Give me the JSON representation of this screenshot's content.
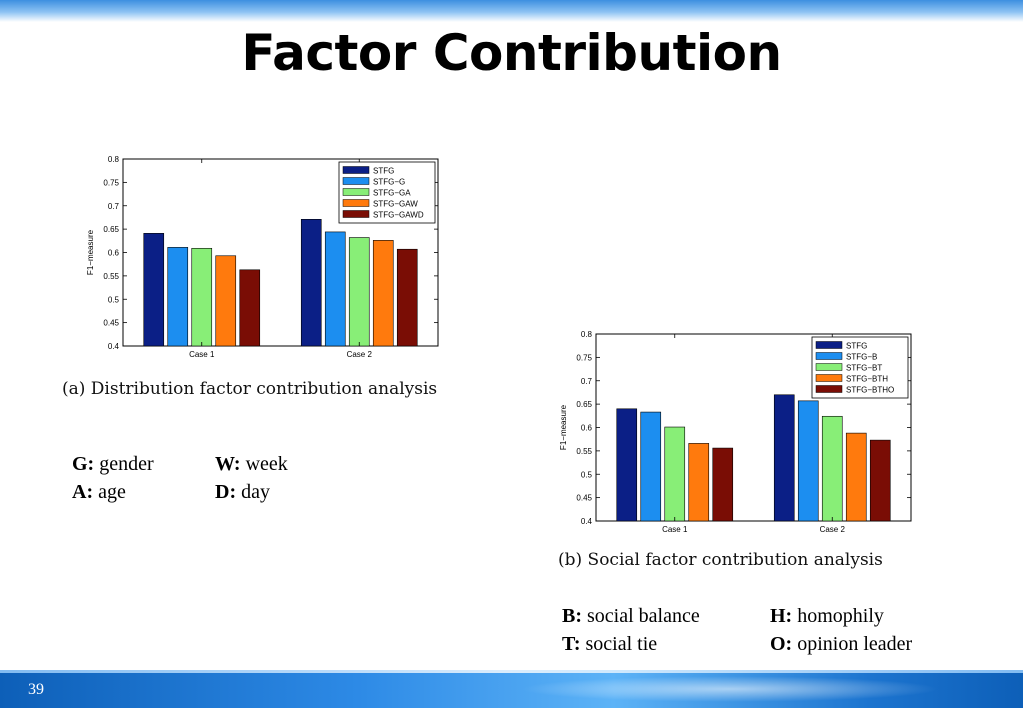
{
  "slide": {
    "title": "Factor Contribution",
    "page_number": "39"
  },
  "captions": {
    "a": "(a) Distribution factor contribution analysis",
    "b": "(b) Social factor contribution analysis"
  },
  "abbreviations": {
    "a_col1": [
      {
        "key": "G:",
        "text": " gender"
      },
      {
        "key": "A:",
        "text": " age"
      }
    ],
    "a_col2": [
      {
        "key": "W:",
        "text": " week"
      },
      {
        "key": "D:",
        "text": " day"
      }
    ],
    "b_col1": [
      {
        "key": "B:",
        "text": " social balance"
      },
      {
        "key": "T:",
        "text": " social tie"
      }
    ],
    "b_col2": [
      {
        "key": "H:",
        "text": " homophily"
      },
      {
        "key": "O:",
        "text": " opinion leader"
      }
    ]
  },
  "colors": [
    "#0b1f86",
    "#1c8ef0",
    "#88ee77",
    "#ff7a0d",
    "#7a0d05"
  ],
  "chart_data": [
    {
      "type": "bar",
      "categories": [
        "Case 1",
        "Case 2"
      ],
      "ylabel": "F1−measure",
      "ylim": [
        0.4,
        0.8
      ],
      "yticks": [
        "0.4",
        "0.45",
        "0.5",
        "0.55",
        "0.6",
        "0.65",
        "0.7",
        "0.75",
        "0.8"
      ],
      "legend_position": "top-right",
      "grid": false,
      "series": [
        {
          "name": "STFG",
          "values": [
            0.641,
            0.671
          ]
        },
        {
          "name": "STFG−G",
          "values": [
            0.611,
            0.644
          ]
        },
        {
          "name": "STFG−GA",
          "values": [
            0.609,
            0.632
          ]
        },
        {
          "name": "STFG−GAW",
          "values": [
            0.593,
            0.626
          ]
        },
        {
          "name": "STFG−GAWD",
          "values": [
            0.563,
            0.607
          ]
        }
      ]
    },
    {
      "type": "bar",
      "categories": [
        "Case 1",
        "Case 2"
      ],
      "ylabel": "F1−measure",
      "ylim": [
        0.4,
        0.8
      ],
      "yticks": [
        "0.4",
        "0.45",
        "0.5",
        "0.55",
        "0.6",
        "0.65",
        "0.7",
        "0.75",
        "0.8"
      ],
      "legend_position": "top-right",
      "grid": false,
      "series": [
        {
          "name": "STFG",
          "values": [
            0.64,
            0.67
          ]
        },
        {
          "name": "STFG−B",
          "values": [
            0.633,
            0.657
          ]
        },
        {
          "name": "STFG−BT",
          "values": [
            0.601,
            0.624
          ]
        },
        {
          "name": "STFG−BTH",
          "values": [
            0.566,
            0.588
          ]
        },
        {
          "name": "STFG−BTHO",
          "values": [
            0.556,
            0.573
          ]
        }
      ]
    }
  ]
}
